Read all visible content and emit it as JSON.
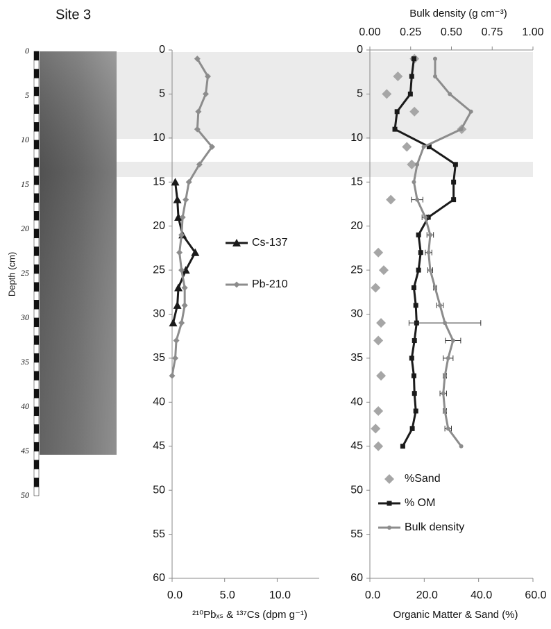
{
  "title": "Site 3",
  "core": {
    "depth_label": "Depth (cm)",
    "ticks": [
      0,
      5,
      10,
      15,
      20,
      25,
      30,
      35,
      40,
      45,
      50
    ]
  },
  "chart_data": [
    {
      "type": "line",
      "x_label": "²¹⁰Pbₓₛ & ¹³⁷Cs (dpm g⁻¹)",
      "xlim": [
        0,
        14
      ],
      "xticks": [
        {
          "value": 0,
          "label": "0.0"
        },
        {
          "value": 5,
          "label": "5.0"
        },
        {
          "value": 10,
          "label": "10.0"
        }
      ],
      "ylim": [
        0,
        60
      ],
      "yticks": [
        0,
        5,
        10,
        15,
        20,
        25,
        30,
        35,
        40,
        45,
        50,
        55,
        60
      ],
      "y_inverted": true,
      "series": [
        {
          "name": "Cs-137",
          "color": "#1a1a1a",
          "marker": "triangle",
          "line": true,
          "depth": [
            15,
            17,
            19,
            21,
            23,
            25,
            27,
            29,
            31
          ],
          "values": [
            0.3,
            0.5,
            0.6,
            1.0,
            2.2,
            1.3,
            0.6,
            0.5,
            0.1
          ]
        },
        {
          "name": "Pb-210",
          "color": "#8c8c8c",
          "marker": "diamond",
          "line": true,
          "depth": [
            1,
            3,
            5,
            7,
            9,
            11,
            13,
            15,
            17,
            19,
            21,
            23,
            25,
            27,
            29,
            31,
            33,
            35,
            37
          ],
          "values": [
            2.4,
            3.4,
            3.2,
            2.5,
            2.4,
            3.8,
            2.6,
            1.6,
            1.3,
            1.0,
            0.9,
            0.7,
            0.9,
            1.2,
            1.2,
            0.9,
            0.4,
            0.3,
            0
          ]
        }
      ]
    },
    {
      "type": "line",
      "x_label": "Organic Matter & Sand (%)",
      "x2_label": "Bulk density (g cm⁻³)",
      "xlim": [
        0,
        60
      ],
      "xticks": [
        {
          "value": 0,
          "label": "0.0"
        },
        {
          "value": 20,
          "label": "20.0"
        },
        {
          "value": 40,
          "label": "40.0"
        },
        {
          "value": 60,
          "label": "60.0"
        }
      ],
      "x2lim": [
        0,
        1
      ],
      "x2ticks": [
        {
          "value": 0,
          "label": "0.00"
        },
        {
          "value": 0.25,
          "label": "0.25"
        },
        {
          "value": 0.5,
          "label": "0.50"
        },
        {
          "value": 0.75,
          "label": "0.75"
        },
        {
          "value": 1,
          "label": "1.00"
        }
      ],
      "ylim": [
        0,
        60
      ],
      "yticks": [
        0,
        5,
        10,
        15,
        20,
        25,
        30,
        35,
        40,
        45,
        50,
        55,
        60
      ],
      "y_inverted": true,
      "series": [
        {
          "name": "%Sand",
          "color": "#a6a6a6",
          "marker": "diamond",
          "line": false,
          "depth": [
            1,
            3,
            5,
            7,
            9,
            11,
            13,
            17,
            23,
            25,
            27,
            31,
            33,
            37,
            41,
            43,
            45
          ],
          "values": [
            16.4,
            10.3,
            6.2,
            16.4,
            33.8,
            13.6,
            15.4,
            7.7,
            3.1,
            5.1,
            2.1,
            4.1,
            3.1,
            4.1,
            3.1,
            2.1,
            3.1
          ]
        },
        {
          "name": "% OM",
          "color": "#1a1a1a",
          "marker": "square",
          "line": true,
          "depth": [
            1,
            3,
            5,
            7,
            9,
            11,
            13,
            15,
            17,
            19,
            21,
            23,
            25,
            27,
            29,
            31,
            33,
            35,
            37,
            39,
            41,
            43,
            45
          ],
          "values": [
            16.2,
            15.4,
            14.9,
            10,
            9.2,
            21.8,
            31.5,
            30.8,
            30.8,
            21.5,
            17.9,
            18.7,
            17.9,
            16.2,
            16.9,
            17.2,
            16.4,
            15.4,
            16.2,
            16.4,
            16.9,
            15.6,
            12.1
          ]
        },
        {
          "name": "Bulk density",
          "color": "#8c8c8c",
          "marker": "circle",
          "line": true,
          "axis": "x2",
          "depth": [
            1,
            3,
            5,
            7,
            9,
            11,
            13,
            15,
            17,
            19,
            21,
            23,
            25,
            27,
            29,
            31,
            33,
            35,
            37,
            39,
            41,
            43,
            45
          ],
          "values": [
            0.4,
            0.4,
            0.49,
            0.62,
            0.56,
            0.33,
            0.29,
            0.27,
            0.29,
            0.34,
            0.37,
            0.36,
            0.37,
            0.4,
            0.43,
            0.46,
            0.51,
            0.48,
            0.46,
            0.45,
            0.46,
            0.48,
            0.56
          ],
          "errors": [
            null,
            null,
            null,
            null,
            null,
            null,
            null,
            null,
            0.035,
            0.02,
            0.02,
            0.02,
            0.015,
            0.01,
            0.02,
            0.22,
            0.047,
            0.03,
            0.01,
            0.02,
            0.01,
            0.02,
            null
          ]
        }
      ]
    }
  ]
}
